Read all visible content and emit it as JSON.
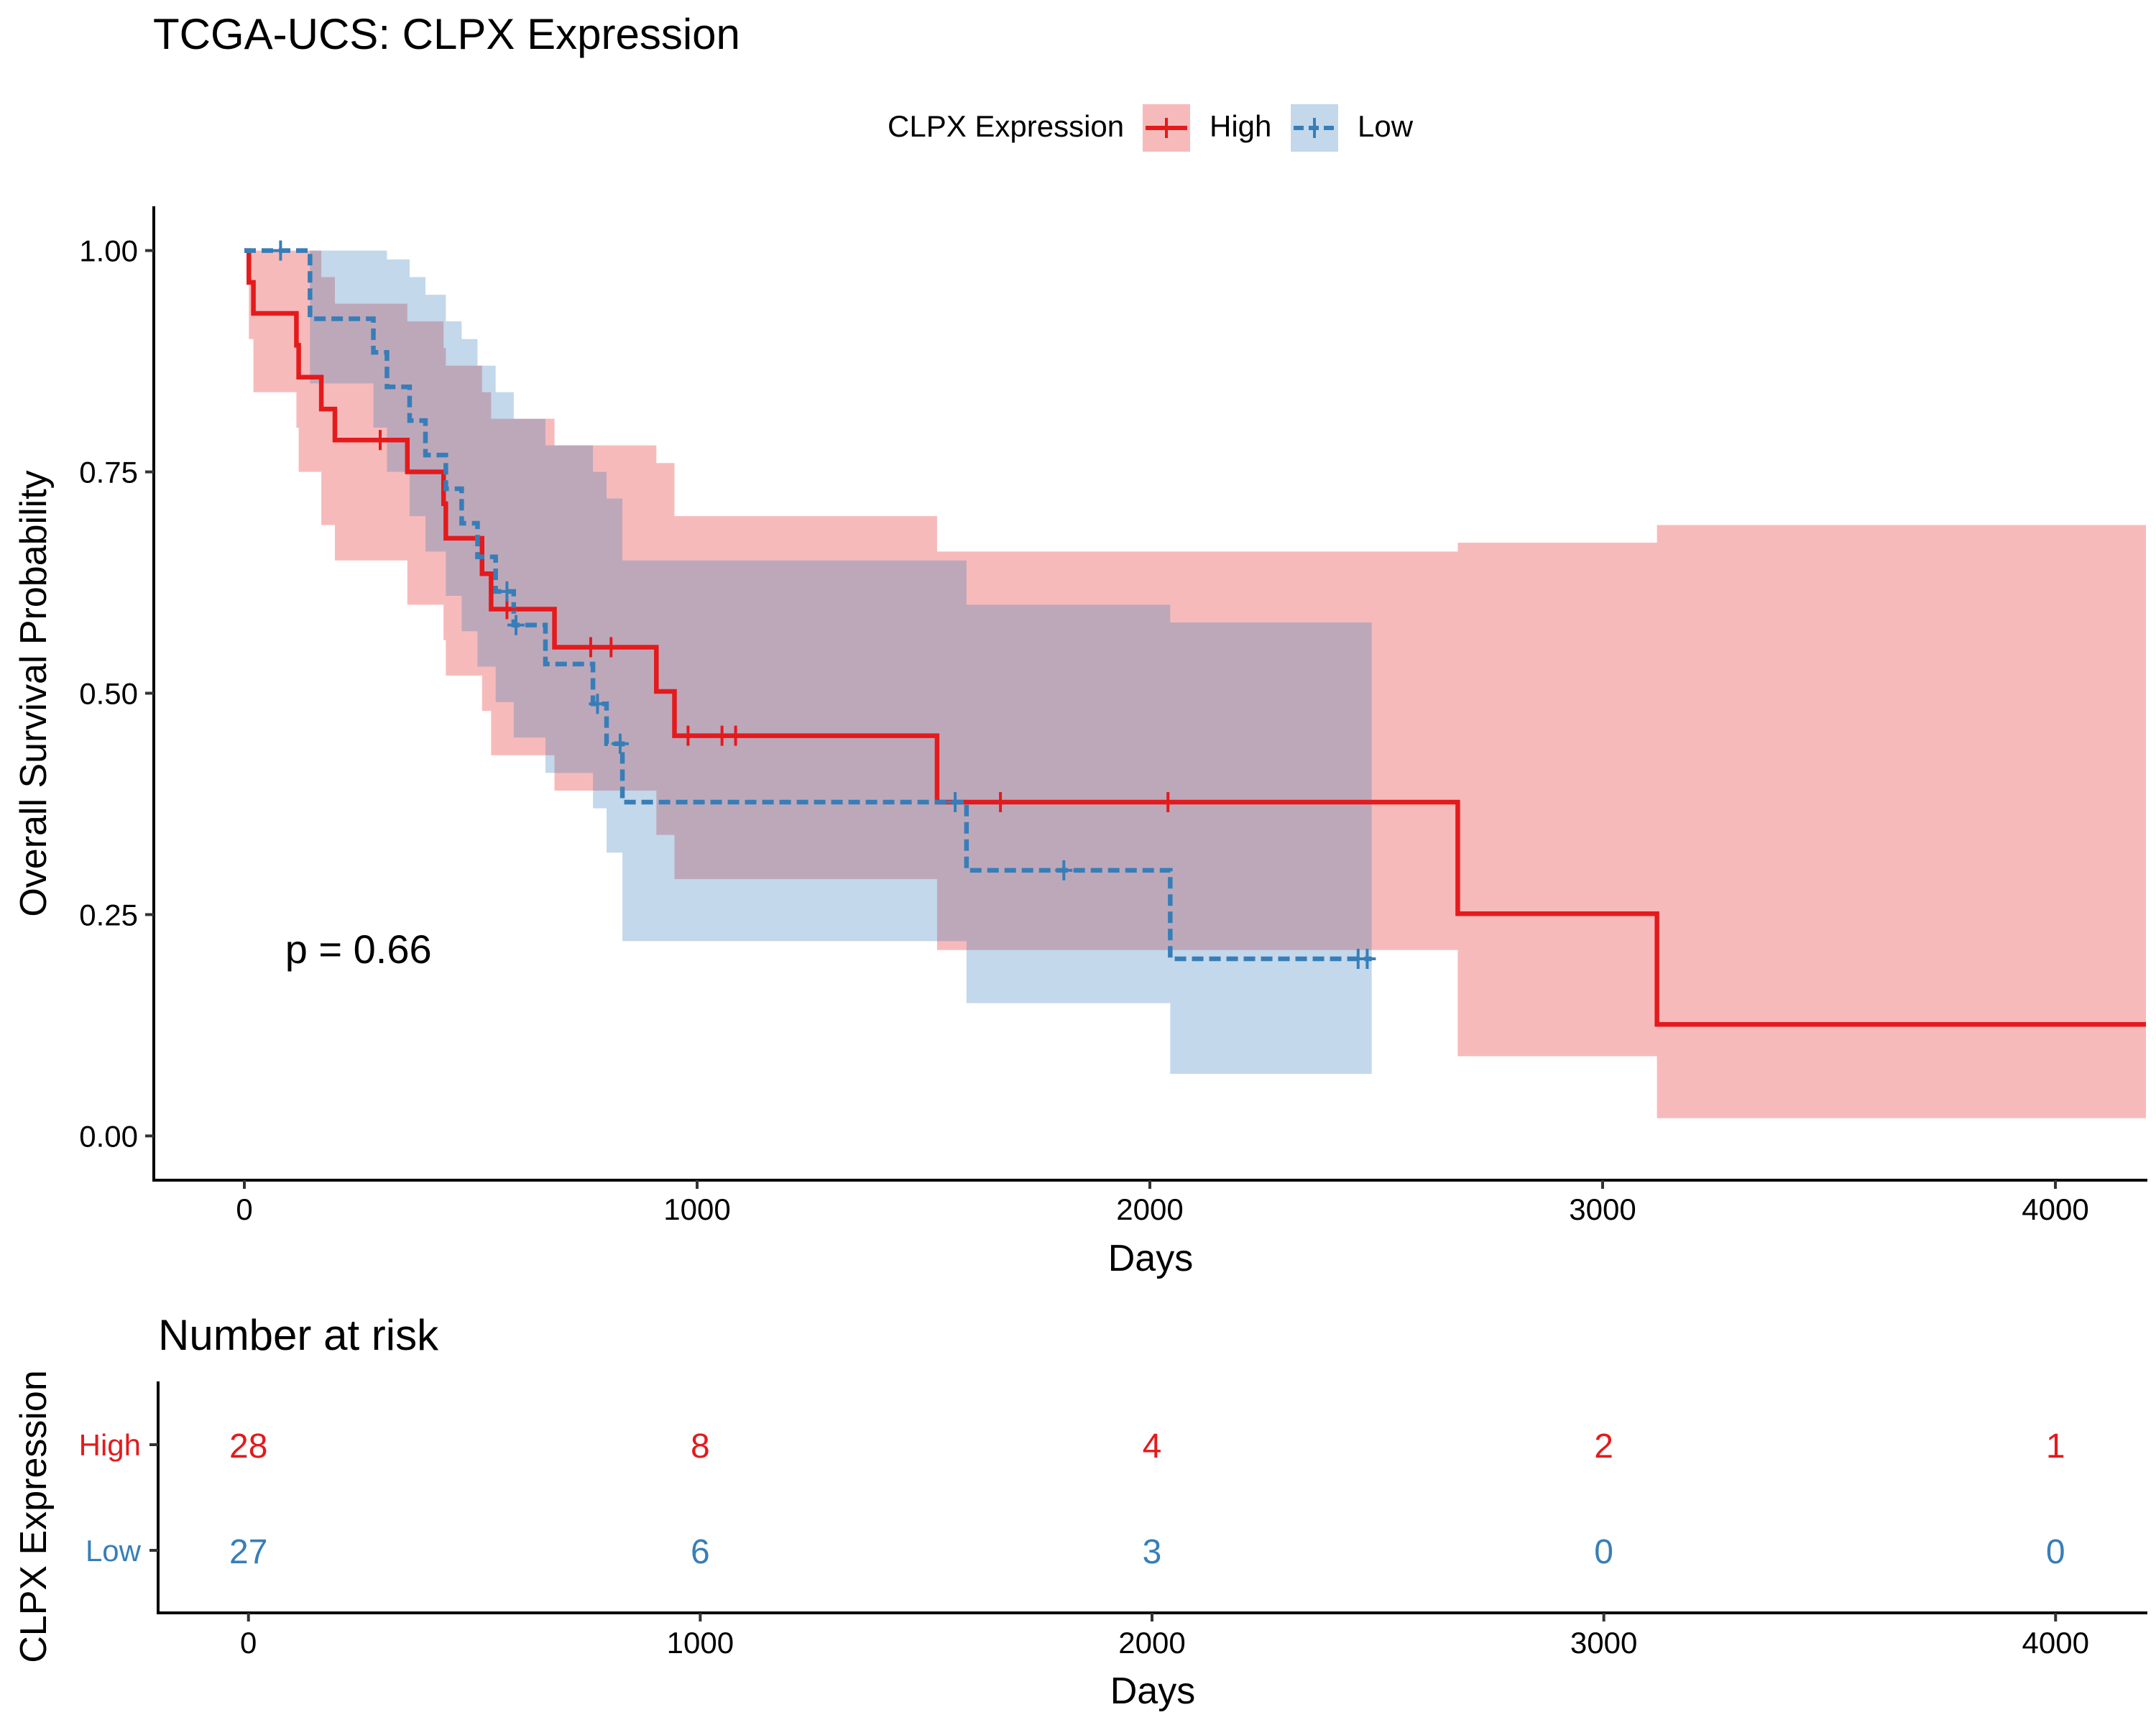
{
  "chart_data": [
    {
      "type": "line",
      "subtype": "kaplan-meier",
      "title": "TCGA-UCS: CLPX Expression",
      "xlabel": "Days",
      "ylabel": "Overall Survival Probability",
      "xlim": [
        -200,
        4200
      ],
      "ylim": [
        -0.05,
        1.05
      ],
      "x_ticks": [
        0,
        1000,
        2000,
        3000,
        4000
      ],
      "x_tick_labels": [
        "0",
        "1000",
        "2000",
        "3000",
        "4000"
      ],
      "y_ticks": [
        0,
        0.25,
        0.5,
        0.75,
        1.0
      ],
      "y_tick_labels": [
        "0.00",
        "0.25",
        "0.50",
        "0.75",
        "1.00"
      ],
      "grid": false,
      "annotation": "p = 0.66",
      "annotation_position": [
        90,
        0.195
      ],
      "legend": {
        "title": "CLPX Expression",
        "placement": "top-center",
        "entries": [
          "High",
          "Low"
        ]
      },
      "series": [
        {
          "name": "High",
          "color": "#e41a1c",
          "line_style": "solid",
          "steps": [
            [
              0,
              1.0
            ],
            [
              10,
              0.964
            ],
            [
              20,
              0.929
            ],
            [
              115,
              0.893
            ],
            [
              120,
              0.857
            ],
            [
              170,
              0.821
            ],
            [
              200,
              0.786
            ],
            [
              360,
              0.75
            ],
            [
              440,
              0.714
            ],
            [
              445,
              0.675
            ],
            [
              525,
              0.635
            ],
            [
              545,
              0.595
            ],
            [
              685,
              0.552
            ],
            [
              910,
              0.502
            ],
            [
              950,
              0.452
            ],
            [
              1530,
              0.377
            ],
            [
              2680,
              0.251
            ],
            [
              3120,
              0.126
            ],
            [
              4200,
              0.126
            ]
          ],
          "ci_steps": [
            [
              0,
              1.0,
              1.0
            ],
            [
              10,
              0.9,
              1.0
            ],
            [
              20,
              0.84,
              1.0
            ],
            [
              115,
              0.8,
              1.0
            ],
            [
              120,
              0.75,
              1.0
            ],
            [
              170,
              0.69,
              0.97
            ],
            [
              200,
              0.65,
              0.94
            ],
            [
              360,
              0.6,
              0.92
            ],
            [
              440,
              0.56,
              0.89
            ],
            [
              445,
              0.52,
              0.87
            ],
            [
              525,
              0.48,
              0.84
            ],
            [
              545,
              0.43,
              0.81
            ],
            [
              685,
              0.39,
              0.78
            ],
            [
              910,
              0.34,
              0.76
            ],
            [
              950,
              0.29,
              0.7
            ],
            [
              1530,
              0.21,
              0.66
            ],
            [
              2680,
              0.09,
              0.67
            ],
            [
              3120,
              0.02,
              0.69
            ],
            [
              4200,
              0.02,
              0.69
            ]
          ],
          "censor_times": [
            300,
            580,
            765,
            810,
            980,
            1055,
            1085,
            1670,
            2040
          ]
        },
        {
          "name": "Low",
          "color": "#377eb8",
          "line_style": "dashed",
          "steps": [
            [
              0,
              1.0
            ],
            [
              145,
              0.923
            ],
            [
              285,
              0.885
            ],
            [
              315,
              0.846
            ],
            [
              365,
              0.808
            ],
            [
              400,
              0.769
            ],
            [
              445,
              0.731
            ],
            [
              480,
              0.692
            ],
            [
              515,
              0.654
            ],
            [
              555,
              0.615
            ],
            [
              595,
              0.577
            ],
            [
              665,
              0.533
            ],
            [
              770,
              0.488
            ],
            [
              800,
              0.443
            ],
            [
              835,
              0.377
            ],
            [
              1595,
              0.3
            ],
            [
              2045,
              0.2
            ],
            [
              2490,
              0.2
            ]
          ],
          "ci_steps": [
            [
              0,
              1.0,
              1.0
            ],
            [
              145,
              0.85,
              1.0
            ],
            [
              285,
              0.8,
              1.0
            ],
            [
              315,
              0.75,
              0.99
            ],
            [
              365,
              0.7,
              0.97
            ],
            [
              400,
              0.66,
              0.95
            ],
            [
              445,
              0.61,
              0.92
            ],
            [
              480,
              0.57,
              0.9
            ],
            [
              515,
              0.53,
              0.87
            ],
            [
              555,
              0.49,
              0.84
            ],
            [
              595,
              0.45,
              0.81
            ],
            [
              665,
              0.41,
              0.78
            ],
            [
              770,
              0.37,
              0.75
            ],
            [
              800,
              0.32,
              0.72
            ],
            [
              835,
              0.22,
              0.65
            ],
            [
              1595,
              0.15,
              0.6
            ],
            [
              2045,
              0.07,
              0.58
            ],
            [
              2490,
              0.07,
              0.58
            ]
          ],
          "censor_times": [
            80,
            580,
            600,
            780,
            830,
            1570,
            1810,
            2460,
            2480
          ]
        }
      ]
    },
    {
      "type": "table",
      "title": "Number at risk",
      "xlabel": "Days",
      "ylabel": "CLPX Expression",
      "xlim": [
        -200,
        4200
      ],
      "x_ticks": [
        0,
        1000,
        2000,
        3000,
        4000
      ],
      "x_tick_labels": [
        "0",
        "1000",
        "2000",
        "3000",
        "4000"
      ],
      "rows": [
        {
          "name": "High",
          "color": "#e41a1c",
          "values": [
            "28",
            "8",
            "4",
            "2",
            "1"
          ]
        },
        {
          "name": "Low",
          "color": "#377eb8",
          "values": [
            "27",
            "6",
            "3",
            "0",
            "0"
          ]
        }
      ]
    }
  ]
}
